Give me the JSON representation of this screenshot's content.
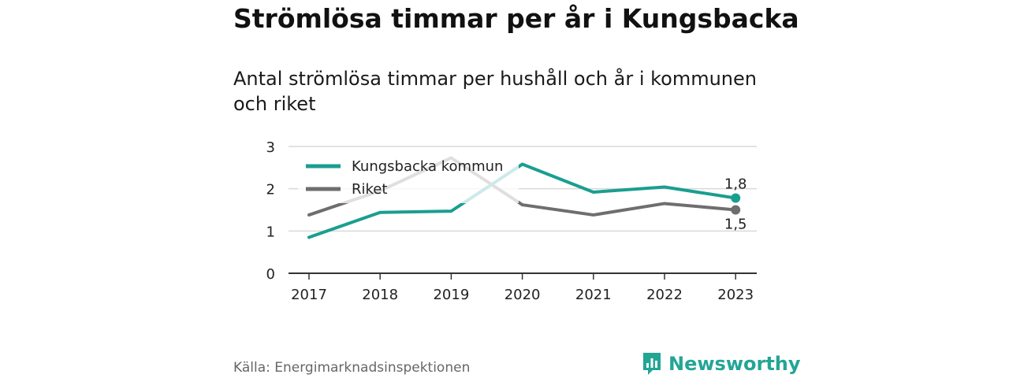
{
  "header": {
    "title": "Strömlösa timmar per år i Kungsbacka",
    "subtitle": "Antal strömlösa timmar per hushåll och år i kommunen och riket"
  },
  "footer": {
    "source": "Källa: Energimarknadsinspektionen",
    "brand": "Newsworthy",
    "brand_icon": "bar-chart-logo-icon"
  },
  "colors": {
    "kungsbacka": "#1a9e90",
    "riket": "#6e6e70",
    "grid": "#d9d9d9",
    "axis": "#333333",
    "brand": "#23a595"
  },
  "chart_data": {
    "type": "line",
    "x": [
      "2017",
      "2018",
      "2019",
      "2020",
      "2021",
      "2022",
      "2023"
    ],
    "ylim": [
      0,
      3
    ],
    "yticks": [
      "0",
      "1",
      "2",
      "3"
    ],
    "grid": true,
    "legend_position": "top-left",
    "series": [
      {
        "name": "Kungsbacka kommun",
        "values": [
          0.85,
          1.44,
          1.47,
          2.58,
          1.92,
          2.04,
          1.78
        ],
        "end_label": "1,8"
      },
      {
        "name": "Riket",
        "values": [
          1.38,
          1.95,
          2.73,
          1.62,
          1.38,
          1.65,
          1.5
        ],
        "end_label": "1,5"
      }
    ]
  }
}
